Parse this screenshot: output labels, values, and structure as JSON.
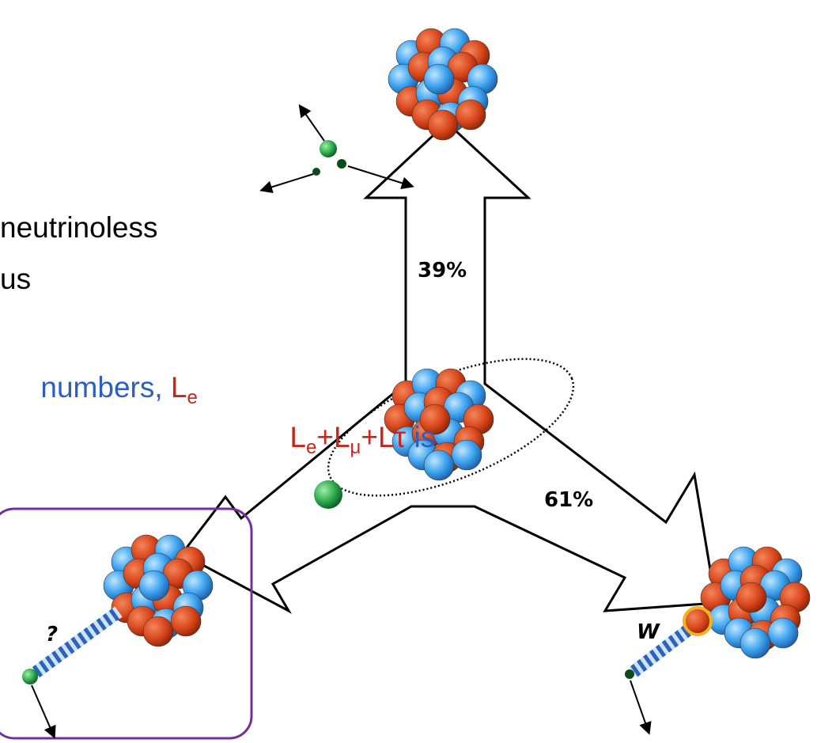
{
  "body_text": {
    "line1": "neutrinoless",
    "line2": "us",
    "line3": [
      "numbers, ",
      "L",
      "e"
    ],
    "line4": [
      "L",
      "e",
      "+L",
      "μ",
      "+Lτ",
      " is"
    ]
  },
  "diagram": {
    "branch_up": "39%",
    "branch_right": "61%",
    "left_label": "?",
    "right_label": "W"
  }
}
